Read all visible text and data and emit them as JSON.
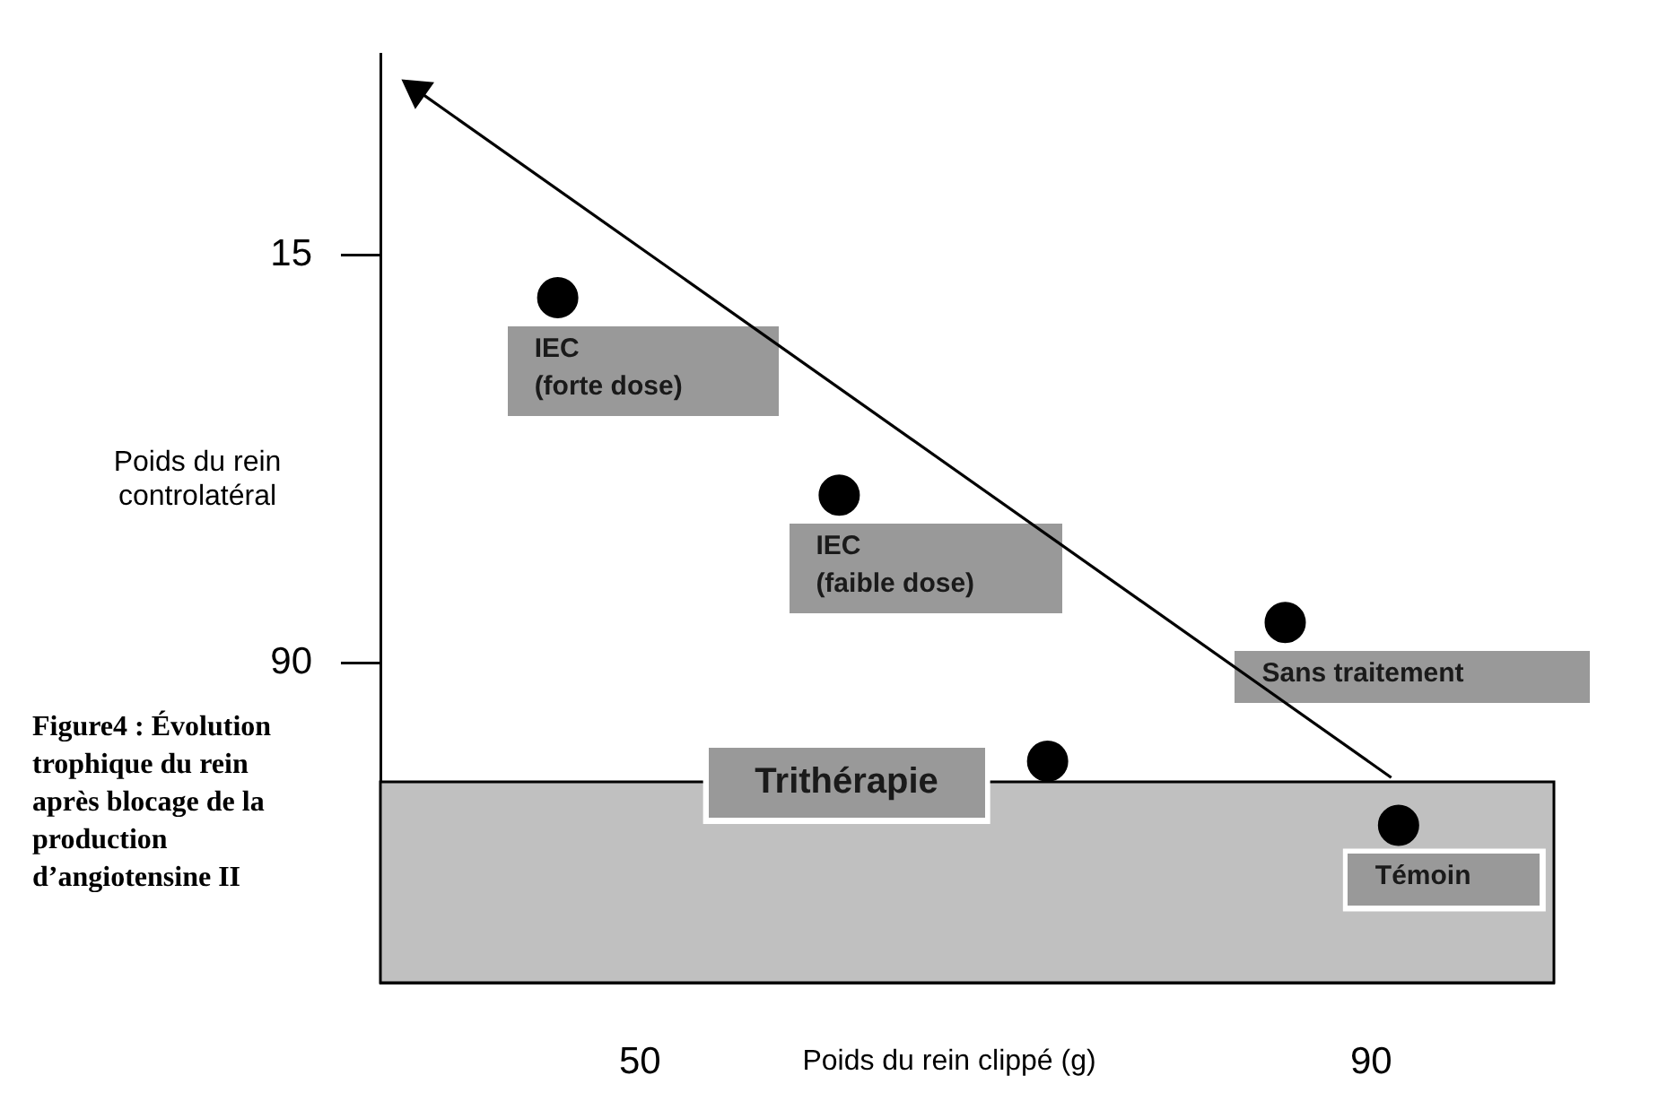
{
  "chart_data": {
    "type": "scatter",
    "xlabel": "Poids du rein clippé (g)",
    "ylabel": "Poids du rein controlatéral",
    "xlim": [
      35.8,
      100
    ],
    "xticks": [
      50,
      90
    ],
    "ylim": [
      148.7,
      -22
    ],
    "yticks": [
      15,
      90
    ],
    "grid": false,
    "legend": false,
    "marker": "circle",
    "series": [
      {
        "name": "IEC\n(forte dose)",
        "color": "#000000",
        "x": [
          45.5
        ],
        "values": [
          22.8
        ]
      },
      {
        "name": "IEC\n(faible dose)",
        "color": "#000000",
        "x": [
          60.9
        ],
        "values": [
          59.1
        ]
      },
      {
        "name": "Sans traitement",
        "color": "#000000",
        "x": [
          85.3
        ],
        "values": [
          82.5
        ]
      },
      {
        "name": "Trithérapie",
        "color": "#000000",
        "x": [
          72.3
        ],
        "values": [
          108.0
        ]
      },
      {
        "name": "Témoin",
        "color": "#000000",
        "x": [
          91.5
        ],
        "values": [
          119.8
        ]
      },
      {
        "type": "line",
        "color": "#000000",
        "marker": "triangle",
        "x": [
          91.1,
          37.8
        ],
        "values": [
          111.0,
          -15.3
        ]
      }
    ],
    "bands": [
      {
        "axis": "y",
        "from": 111.8,
        "to": 148.7,
        "color": "#c0c0c0"
      }
    ],
    "annotations": [
      "Figure4 : Évolution trophique du rein après blocage de la production d’angiotensine II"
    ]
  }
}
